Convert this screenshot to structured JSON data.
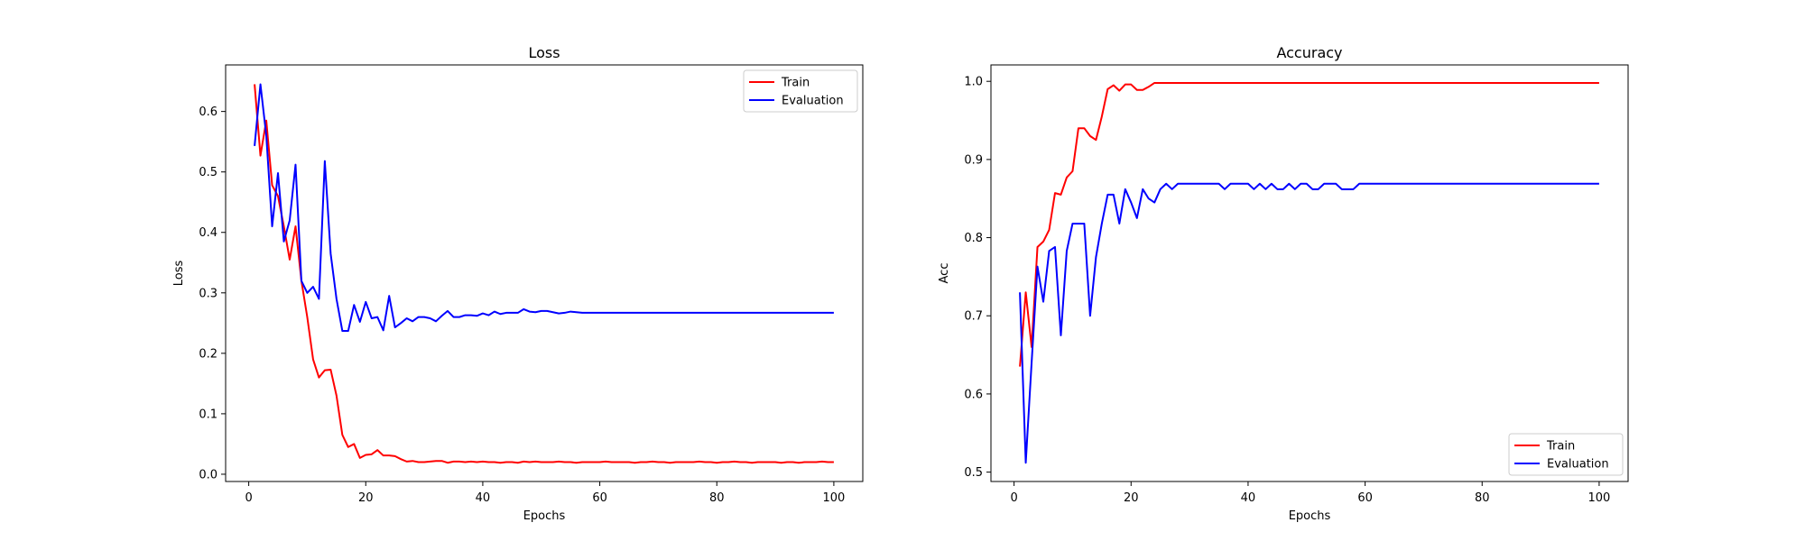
{
  "chart_data": [
    {
      "type": "line",
      "title": "Loss",
      "xlabel": "Epochs",
      "ylabel": "Loss",
      "xlim": [
        -3.95,
        104.95
      ],
      "ylim": [
        -0.012,
        0.677
      ],
      "xticks": [
        0,
        20,
        40,
        60,
        80,
        100
      ],
      "yticks": [
        0.0,
        0.1,
        0.2,
        0.3,
        0.4,
        0.5,
        0.6
      ],
      "xtick_labels": [
        "0",
        "20",
        "40",
        "60",
        "80",
        "100"
      ],
      "ytick_labels": [
        "0.0",
        "0.1",
        "0.2",
        "0.3",
        "0.4",
        "0.5",
        "0.6"
      ],
      "grid": false,
      "legend": "upper right",
      "series": [
        {
          "name": "Train",
          "color": "#ff0000",
          "x": [
            1,
            2,
            3,
            4,
            5,
            6,
            7,
            8,
            9,
            10,
            11,
            12,
            13,
            14,
            15,
            16,
            17,
            18,
            19,
            20,
            21,
            22,
            23,
            24,
            25,
            26,
            27,
            28,
            29,
            30,
            31,
            32,
            33,
            34,
            35,
            36,
            37,
            38,
            39,
            40,
            41,
            42,
            43,
            44,
            45,
            46,
            47,
            48,
            49,
            50,
            51,
            52,
            53,
            54,
            55,
            56,
            57,
            58,
            59,
            60,
            61,
            62,
            63,
            64,
            65,
            66,
            67,
            68,
            69,
            70,
            71,
            72,
            73,
            74,
            75,
            76,
            77,
            78,
            79,
            80,
            81,
            82,
            83,
            84,
            85,
            86,
            87,
            88,
            89,
            90,
            91,
            92,
            93,
            94,
            95,
            96,
            97,
            98,
            99,
            100
          ],
          "y": [
            0.645,
            0.527,
            0.585,
            0.478,
            0.46,
            0.41,
            0.355,
            0.41,
            0.32,
            0.26,
            0.19,
            0.16,
            0.172,
            0.173,
            0.13,
            0.065,
            0.045,
            0.05,
            0.027,
            0.032,
            0.033,
            0.04,
            0.031,
            0.031,
            0.03,
            0.025,
            0.021,
            0.022,
            0.02,
            0.02,
            0.021,
            0.022,
            0.022,
            0.019,
            0.021,
            0.021,
            0.02,
            0.021,
            0.02,
            0.021,
            0.02,
            0.02,
            0.019,
            0.02,
            0.02,
            0.019,
            0.021,
            0.02,
            0.021,
            0.02,
            0.02,
            0.02,
            0.021,
            0.02,
            0.02,
            0.019,
            0.02,
            0.02,
            0.02,
            0.02,
            0.021,
            0.02,
            0.02,
            0.02,
            0.02,
            0.019,
            0.02,
            0.02,
            0.021,
            0.02,
            0.02,
            0.019,
            0.02,
            0.02,
            0.02,
            0.02,
            0.021,
            0.02,
            0.02,
            0.019,
            0.02,
            0.02,
            0.021,
            0.02,
            0.02,
            0.019,
            0.02,
            0.02,
            0.02,
            0.02,
            0.019,
            0.02,
            0.02,
            0.019,
            0.02,
            0.02,
            0.02,
            0.021,
            0.02,
            0.02
          ]
        },
        {
          "name": "Evaluation",
          "color": "#0000ff",
          "x": [
            1,
            2,
            3,
            4,
            5,
            6,
            7,
            8,
            9,
            10,
            11,
            12,
            13,
            14,
            15,
            16,
            17,
            18,
            19,
            20,
            21,
            22,
            23,
            24,
            25,
            26,
            27,
            28,
            29,
            30,
            31,
            32,
            33,
            34,
            35,
            36,
            37,
            38,
            39,
            40,
            41,
            42,
            43,
            44,
            45,
            46,
            47,
            48,
            49,
            50,
            51,
            52,
            53,
            54,
            55,
            56,
            57,
            58,
            59,
            60,
            61,
            62,
            63,
            64,
            65,
            66,
            67,
            68,
            69,
            70,
            71,
            72,
            73,
            74,
            75,
            76,
            77,
            78,
            79,
            80,
            81,
            82,
            83,
            84,
            85,
            86,
            87,
            88,
            89,
            90,
            91,
            92,
            93,
            94,
            95,
            96,
            97,
            98,
            99,
            100
          ],
          "y": [
            0.543,
            0.645,
            0.56,
            0.41,
            0.498,
            0.385,
            0.42,
            0.512,
            0.32,
            0.3,
            0.31,
            0.29,
            0.518,
            0.365,
            0.29,
            0.237,
            0.237,
            0.28,
            0.252,
            0.285,
            0.258,
            0.26,
            0.238,
            0.295,
            0.243,
            0.25,
            0.258,
            0.253,
            0.26,
            0.26,
            0.258,
            0.253,
            0.262,
            0.27,
            0.26,
            0.26,
            0.263,
            0.263,
            0.262,
            0.266,
            0.263,
            0.269,
            0.265,
            0.267,
            0.267,
            0.267,
            0.273,
            0.269,
            0.268,
            0.27,
            0.27,
            0.268,
            0.266,
            0.267,
            0.269,
            0.268,
            0.267,
            0.267,
            0.267,
            0.267,
            0.267,
            0.267,
            0.267,
            0.267,
            0.267,
            0.267,
            0.267,
            0.267,
            0.267,
            0.267,
            0.267,
            0.267,
            0.267,
            0.267,
            0.267,
            0.267,
            0.267,
            0.267,
            0.267,
            0.267,
            0.267,
            0.267,
            0.267,
            0.267,
            0.267,
            0.267,
            0.267,
            0.267,
            0.267,
            0.267,
            0.267,
            0.267,
            0.267,
            0.267,
            0.267,
            0.267,
            0.267,
            0.267,
            0.267,
            0.267
          ]
        }
      ]
    },
    {
      "type": "line",
      "title": "Accuracy",
      "xlabel": "Epochs",
      "ylabel": "Acc",
      "xlim": [
        -3.95,
        104.95
      ],
      "ylim": [
        0.488,
        1.021
      ],
      "xticks": [
        0,
        20,
        40,
        60,
        80,
        100
      ],
      "yticks": [
        0.5,
        0.6,
        0.7,
        0.8,
        0.9,
        1.0
      ],
      "xtick_labels": [
        "0",
        "20",
        "40",
        "60",
        "80",
        "100"
      ],
      "ytick_labels": [
        "0.5",
        "0.6",
        "0.7",
        "0.8",
        "0.9",
        "1.0"
      ],
      "grid": false,
      "legend": "lower right",
      "series": [
        {
          "name": "Train",
          "color": "#ff0000",
          "x": [
            1,
            2,
            3,
            4,
            5,
            6,
            7,
            8,
            9,
            10,
            11,
            12,
            13,
            14,
            15,
            16,
            17,
            18,
            19,
            20,
            21,
            22,
            23,
            24,
            25,
            26,
            27,
            28,
            29,
            30,
            31,
            32,
            33,
            34,
            35,
            36,
            37,
            38,
            39,
            40,
            41,
            42,
            43,
            44,
            45,
            46,
            47,
            48,
            49,
            50,
            51,
            52,
            53,
            54,
            55,
            56,
            57,
            58,
            59,
            60,
            61,
            62,
            63,
            64,
            65,
            66,
            67,
            68,
            69,
            70,
            71,
            72,
            73,
            74,
            75,
            76,
            77,
            78,
            79,
            80,
            81,
            82,
            83,
            84,
            85,
            86,
            87,
            88,
            89,
            90,
            91,
            92,
            93,
            94,
            95,
            96,
            97,
            98,
            99,
            100
          ],
          "y": [
            0.635,
            0.73,
            0.66,
            0.788,
            0.795,
            0.81,
            0.857,
            0.855,
            0.877,
            0.885,
            0.94,
            0.94,
            0.93,
            0.925,
            0.955,
            0.99,
            0.995,
            0.988,
            0.996,
            0.996,
            0.989,
            0.989,
            0.993,
            0.998,
            0.998,
            0.998,
            0.998,
            0.998,
            0.998,
            0.998,
            0.998,
            0.998,
            0.998,
            0.998,
            0.998,
            0.998,
            0.998,
            0.998,
            0.998,
            0.998,
            0.998,
            0.998,
            0.998,
            0.998,
            0.998,
            0.998,
            0.998,
            0.998,
            0.998,
            0.998,
            0.998,
            0.998,
            0.998,
            0.998,
            0.998,
            0.998,
            0.998,
            0.998,
            0.998,
            0.998,
            0.998,
            0.998,
            0.998,
            0.998,
            0.998,
            0.998,
            0.998,
            0.998,
            0.998,
            0.998,
            0.998,
            0.998,
            0.998,
            0.998,
            0.998,
            0.998,
            0.998,
            0.998,
            0.998,
            0.998,
            0.998,
            0.998,
            0.998,
            0.998,
            0.998,
            0.998,
            0.998,
            0.998,
            0.998,
            0.998,
            0.998,
            0.998,
            0.998,
            0.998,
            0.998,
            0.998,
            0.998,
            0.998,
            0.998,
            0.998
          ]
        },
        {
          "name": "Evaluation",
          "color": "#0000ff",
          "x": [
            1,
            2,
            3,
            4,
            5,
            6,
            7,
            8,
            9,
            10,
            11,
            12,
            13,
            14,
            15,
            16,
            17,
            18,
            19,
            20,
            21,
            22,
            23,
            24,
            25,
            26,
            27,
            28,
            29,
            30,
            31,
            32,
            33,
            34,
            35,
            36,
            37,
            38,
            39,
            40,
            41,
            42,
            43,
            44,
            45,
            46,
            47,
            48,
            49,
            50,
            51,
            52,
            53,
            54,
            55,
            56,
            57,
            58,
            59,
            60,
            61,
            62,
            63,
            64,
            65,
            66,
            67,
            68,
            69,
            70,
            71,
            72,
            73,
            74,
            75,
            76,
            77,
            78,
            79,
            80,
            81,
            82,
            83,
            84,
            85,
            86,
            87,
            88,
            89,
            90,
            91,
            92,
            93,
            94,
            95,
            96,
            97,
            98,
            99,
            100
          ],
          "y": [
            0.73,
            0.512,
            0.64,
            0.763,
            0.718,
            0.783,
            0.788,
            0.675,
            0.783,
            0.818,
            0.818,
            0.818,
            0.7,
            0.775,
            0.818,
            0.855,
            0.855,
            0.818,
            0.862,
            0.845,
            0.825,
            0.862,
            0.85,
            0.845,
            0.862,
            0.869,
            0.862,
            0.869,
            0.869,
            0.869,
            0.869,
            0.869,
            0.869,
            0.869,
            0.869,
            0.862,
            0.869,
            0.869,
            0.869,
            0.869,
            0.862,
            0.869,
            0.862,
            0.869,
            0.862,
            0.862,
            0.869,
            0.862,
            0.869,
            0.869,
            0.862,
            0.862,
            0.869,
            0.869,
            0.869,
            0.862,
            0.862,
            0.862,
            0.869,
            0.869,
            0.869,
            0.869,
            0.869,
            0.869,
            0.869,
            0.869,
            0.869,
            0.869,
            0.869,
            0.869,
            0.869,
            0.869,
            0.869,
            0.869,
            0.869,
            0.869,
            0.869,
            0.869,
            0.869,
            0.869,
            0.869,
            0.869,
            0.869,
            0.869,
            0.869,
            0.869,
            0.869,
            0.869,
            0.869,
            0.869,
            0.869,
            0.869,
            0.869,
            0.869,
            0.869,
            0.869,
            0.869,
            0.869,
            0.869,
            0.869
          ]
        }
      ]
    }
  ]
}
